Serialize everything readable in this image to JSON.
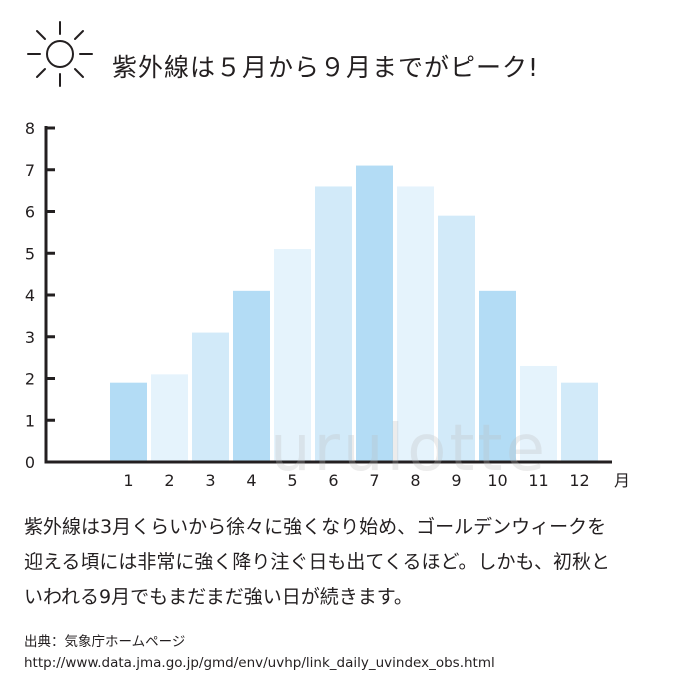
{
  "header": {
    "icon": "sun-icon",
    "title": "紫外線は５月から９月までがピーク!"
  },
  "chart_data": {
    "type": "bar",
    "categories": [
      "1",
      "2",
      "3",
      "4",
      "5",
      "6",
      "7",
      "8",
      "9",
      "10",
      "11",
      "12"
    ],
    "values": [
      1.9,
      2.1,
      3.1,
      4.1,
      5.1,
      6.6,
      7.1,
      6.6,
      5.9,
      4.1,
      2.3,
      1.9
    ],
    "bar_colors": [
      "#b3dcf5",
      "#e5f3fc",
      "#d2eaf9",
      "#b3dcf5",
      "#e5f3fc",
      "#d2eaf9",
      "#b3dcf5",
      "#e5f3fc",
      "#d2eaf9",
      "#b3dcf5",
      "#e5f3fc",
      "#d2eaf9"
    ],
    "x_unit": "月",
    "y_ticks": [
      "0",
      "1",
      "2",
      "3",
      "4",
      "5",
      "6",
      "7",
      "8"
    ],
    "ylim": [
      0,
      8
    ],
    "axis_color": "#231f20",
    "grid": false
  },
  "description": {
    "lines": [
      "紫外線は3月くらいから徐々に強くなり始め、ゴールデンウィークを",
      "迎える頃には非常に強く降り注ぐ日も出てくるほど。しかも、初秋と",
      "いわれる9月でもまだまだ強い日が続きます。"
    ]
  },
  "source": {
    "label": "出典：気象庁ホームページ",
    "url": "http://www.data.jma.go.jp/gmd/env/uvhp/link_daily_uvindex_obs.html"
  },
  "watermark": "urulotte"
}
